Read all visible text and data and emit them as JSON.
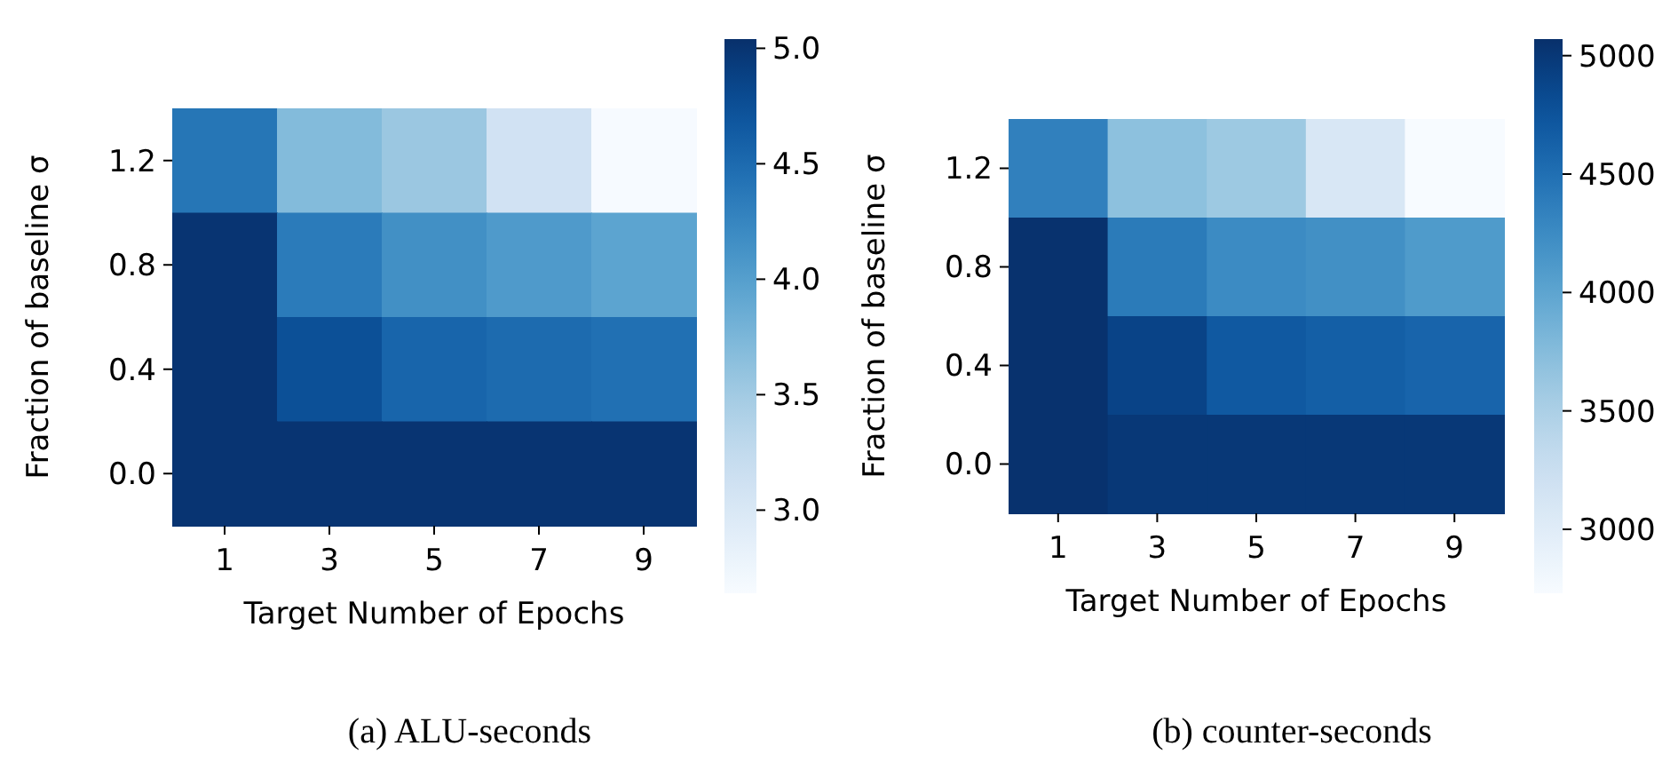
{
  "chart_data": [
    {
      "type": "heatmap",
      "xlabel": "Target Number of Epochs",
      "ylabel": "Fraction of baseline σ",
      "categories": [
        "1",
        "3",
        "5",
        "7",
        "9"
      ],
      "y_categories": [
        "1.2",
        "0.8",
        "0.4",
        "0.0"
      ],
      "cells": [
        [
          4.4,
          3.7,
          3.55,
          3.1,
          2.65
        ],
        [
          5.0,
          4.35,
          4.15,
          4.05,
          3.95
        ],
        [
          5.0,
          4.75,
          4.55,
          4.5,
          4.45
        ],
        [
          5.0,
          5.0,
          5.0,
          5.0,
          5.0
        ]
      ],
      "clim": [
        2.64,
        5.04
      ],
      "cticks": [
        {
          "value": 3.0,
          "label": "3.0"
        },
        {
          "value": 3.5,
          "label": "3.5"
        },
        {
          "value": 4.0,
          "label": "4.0"
        },
        {
          "value": 4.5,
          "label": "4.5"
        },
        {
          "value": 5.0,
          "label": "5.0"
        }
      ],
      "annotations": [
        "(a) ALU-seconds"
      ]
    },
    {
      "type": "heatmap",
      "xlabel": "Target Number of Epochs",
      "ylabel": "Fraction of baseline σ",
      "categories": [
        "1",
        "3",
        "5",
        "7",
        "9"
      ],
      "y_categories": [
        "1.2",
        "0.8",
        "0.4",
        "0.0"
      ],
      "cells": [
        [
          4350,
          3700,
          3600,
          3100,
          2730
        ],
        [
          5050,
          4400,
          4250,
          4200,
          4100
        ],
        [
          5050,
          4900,
          4700,
          4650,
          4600
        ],
        [
          5050,
          5000,
          5000,
          5000,
          5000
        ]
      ],
      "clim": [
        2730,
        5070
      ],
      "cticks": [
        3000,
        3500,
        4000,
        4500,
        5000
      ],
      "annotations": [
        "(b) counter-seconds"
      ]
    }
  ]
}
